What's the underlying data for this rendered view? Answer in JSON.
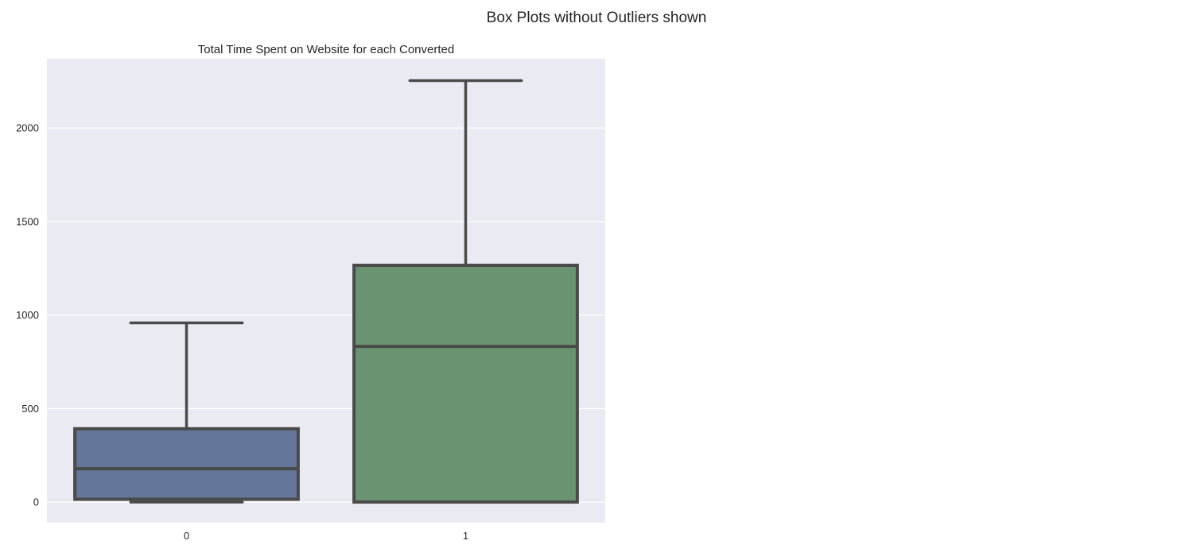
{
  "figure": {
    "suptitle": "Box Plots without Outliers shown"
  },
  "chart_data": {
    "type": "box",
    "title": "Total Time Spent on Website for each Converted",
    "xlabel": "",
    "ylabel": "",
    "categories": [
      "0",
      "1"
    ],
    "ylim": [
      -110,
      2370
    ],
    "yticks": [
      0,
      500,
      1000,
      1500,
      2000
    ],
    "grid": true,
    "showfliers": false,
    "boxes": [
      {
        "category": "0",
        "whislo": 0,
        "q1": 15,
        "median": 178,
        "q3": 392,
        "whishi": 958,
        "color": "#64769a"
      },
      {
        "category": "1",
        "whislo": 0,
        "q1": 0,
        "median": 832,
        "q3": 1266,
        "whishi": 2253,
        "color": "#6a9372"
      }
    ],
    "style": {
      "axes_facecolor": "#eaeaf2",
      "grid_color": "#ffffff",
      "line_color": "#4a4a4a"
    }
  }
}
